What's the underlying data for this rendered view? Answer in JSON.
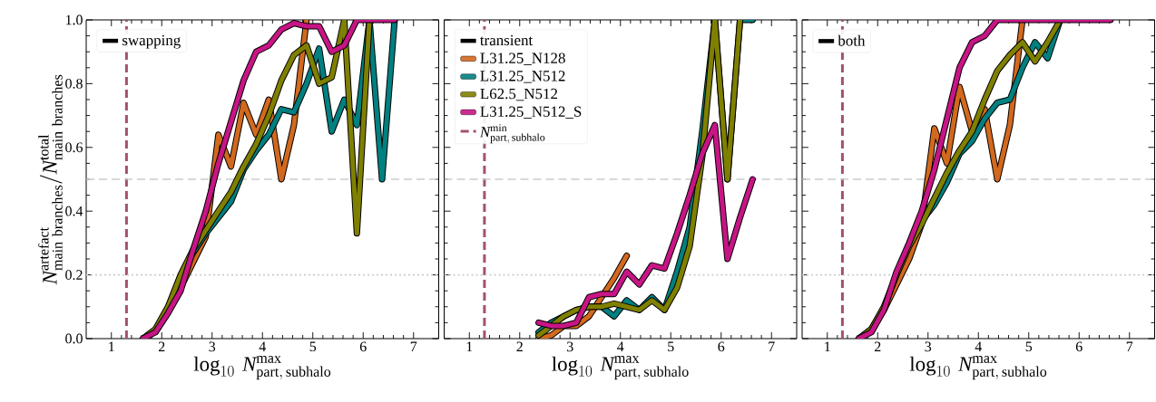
{
  "chart_data": [
    {
      "type": "line",
      "xlabel": "\\log_{10}\\,\\mathit{N}^{\\mathrm{max}}_{\\mathrm{part,\\,subhalo}}",
      "ylabel": "\\mathit{N}^{\\mathrm{artefact}}_{\\mathrm{main\\ branches}}\\mathrm{/}\\mathit{N}^{\\mathrm{total}}_{\\mathrm{main\\ branches}}",
      "legend_title": "swapping",
      "legend": "top left",
      "xlim": [
        0.5,
        7.5
      ],
      "ylim": [
        0,
        1
      ],
      "xticks": [
        1,
        2,
        3,
        4,
        5,
        6,
        7
      ],
      "yticks": [
        {
          "value": 0,
          "label": "0.0"
        },
        {
          "value": 0.2,
          "label": "0.2"
        },
        {
          "value": 0.4,
          "label": "0.4"
        },
        {
          "value": 0.6,
          "label": "0.6"
        },
        {
          "value": 0.8,
          "label": "0.8"
        },
        {
          "value": 1,
          "label": "1.0"
        }
      ],
      "ref_lines": [
        {
          "axis": "x",
          "value": 1.3,
          "color": "#a3526a",
          "line_style": "dashed"
        },
        {
          "axis": "y",
          "value": 0.5,
          "color": "#cccccc",
          "line_style": "dashed"
        },
        {
          "axis": "y",
          "value": 0.2,
          "color": "#cccccc",
          "line_style": "dotted"
        }
      ],
      "series": [
        {
          "color": "#d2691e",
          "x": [
            2.125,
            2.375,
            2.625,
            2.875,
            3.125,
            3.375,
            3.625,
            3.875,
            4.125,
            4.375,
            4.625,
            4.875
          ],
          "values": [
            0.09,
            0.16,
            0.24,
            0.32,
            0.64,
            0.54,
            0.74,
            0.64,
            0.75,
            0.5,
            0.67,
            1.0
          ]
        },
        {
          "color": "#008080",
          "x": [
            2.375,
            2.625,
            2.875,
            3.125,
            3.375,
            3.625,
            3.875,
            4.125,
            4.375,
            4.625,
            4.875,
            5.125,
            5.375,
            5.625,
            5.875,
            6.125,
            6.375,
            6.625
          ],
          "values": [
            0.19,
            0.27,
            0.33,
            0.38,
            0.43,
            0.53,
            0.59,
            0.64,
            0.72,
            0.71,
            0.8,
            0.91,
            0.65,
            0.75,
            0.67,
            1.0,
            0.5,
            1.0
          ]
        },
        {
          "color": "#808000",
          "x": [
            1.625,
            1.875,
            2.125,
            2.375,
            2.625,
            2.875,
            3.125,
            3.375,
            3.625,
            3.875,
            4.125,
            4.375,
            4.625,
            4.875,
            5.125,
            5.375,
            5.625,
            5.875,
            6.125
          ],
          "values": [
            0,
            0.03,
            0.1,
            0.2,
            0.28,
            0.34,
            0.4,
            0.46,
            0.54,
            0.61,
            0.7,
            0.81,
            0.89,
            0.92,
            0.8,
            0.82,
            1.0,
            0.33,
            1.0
          ]
        },
        {
          "color": "#c71585",
          "x": [
            1.625,
            1.875,
            2.125,
            2.375,
            2.625,
            2.875,
            3.125,
            3.375,
            3.625,
            3.875,
            4.125,
            4.375,
            4.625,
            4.875,
            5.125,
            5.375,
            5.625,
            5.875,
            6.125,
            6.375,
            6.625
          ],
          "values": [
            0,
            0.02,
            0.08,
            0.15,
            0.28,
            0.4,
            0.55,
            0.68,
            0.81,
            0.9,
            0.92,
            0.97,
            0.99,
            0.98,
            0.98,
            0.9,
            0.92,
            1.0,
            1.0,
            1.0,
            1.0
          ]
        }
      ]
    },
    {
      "type": "line",
      "xlabel": "\\log_{10}\\,\\mathit{N}^{\\mathrm{max}}_{\\mathrm{part,\\,subhalo}}",
      "legend_title": "transient",
      "legend": "top left",
      "tick_labels": "x",
      "xlim": [
        0.5,
        7.5
      ],
      "ylim": [
        0,
        1
      ],
      "xticks": [
        1,
        2,
        3,
        4,
        5,
        6,
        7
      ],
      "yticks": [
        {
          "value": 0,
          "label": null
        },
        {
          "value": 0.2,
          "label": null
        },
        {
          "value": 0.4,
          "label": null
        },
        {
          "value": 0.6,
          "label": null
        },
        {
          "value": 0.8,
          "label": null
        },
        {
          "value": 1,
          "label": null
        }
      ],
      "ref_lines": [
        {
          "axis": "x",
          "value": 1.3,
          "color": "#a3526a",
          "line_style": "dashed",
          "label": "\\mathit{N}^{\\mathrm{min}}_{\\mathrm{part,\\,subhalo}}"
        },
        {
          "axis": "y",
          "value": 0.5,
          "color": "#cccccc",
          "line_style": "dashed"
        },
        {
          "axis": "y",
          "value": 0.2,
          "color": "#cccccc",
          "line_style": "dotted"
        }
      ],
      "series": [
        {
          "name": "L31.25_N128",
          "color": "#d2691e",
          "x": [
            2.375,
            2.625,
            2.875,
            3.125,
            3.375,
            3.625,
            3.875,
            4.125
          ],
          "values": [
            0,
            0.01,
            0.04,
            0.04,
            0.07,
            0.13,
            0.19,
            0.26
          ]
        },
        {
          "name": "L31.25_N512",
          "color": "#008080",
          "x": [
            2.375,
            2.625,
            2.875,
            3.125,
            3.375,
            3.625,
            3.875,
            4.125,
            4.375,
            4.625,
            4.875,
            5.125,
            5.375,
            5.625,
            5.875,
            6.125,
            6.375,
            6.625
          ],
          "values": [
            0.02,
            0.05,
            0.07,
            0.09,
            0.1,
            0.1,
            0.07,
            0.12,
            0.09,
            0.13,
            0.09,
            0.21,
            0.35,
            0.65,
            1.0,
            0.5,
            1.0,
            1.0
          ]
        },
        {
          "name": "L62.5_N512",
          "color": "#808000",
          "x": [
            2.375,
            2.625,
            2.875,
            3.125,
            3.375,
            3.625,
            3.875,
            4.125,
            4.375,
            4.625,
            4.875,
            5.125,
            5.375,
            5.625,
            5.875,
            6.125,
            6.375
          ],
          "values": [
            0.01,
            0.04,
            0.07,
            0.09,
            0.1,
            0.1,
            0.11,
            0.1,
            0.09,
            0.12,
            0.09,
            0.16,
            0.29,
            0.57,
            1.0,
            0.5,
            1.0
          ]
        },
        {
          "name": "L31.25_N512_S",
          "color": "#c71585",
          "x": [
            2.375,
            2.625,
            2.875,
            3.125,
            3.375,
            3.625,
            3.875,
            4.125,
            4.375,
            4.625,
            4.875,
            5.125,
            5.375,
            5.625,
            5.875,
            6.125,
            6.375,
            6.625
          ],
          "values": [
            0.05,
            0.04,
            0.04,
            0.05,
            0.13,
            0.14,
            0.14,
            0.21,
            0.17,
            0.23,
            0.22,
            0.33,
            0.45,
            0.58,
            0.67,
            0.25,
            0.38,
            0.5
          ]
        }
      ]
    },
    {
      "type": "line",
      "xlabel": "\\log_{10}\\,\\mathit{N}^{\\mathrm{max}}_{\\mathrm{part,\\,subhalo}}",
      "legend_title": "both",
      "legend": "top left",
      "tick_labels": "x",
      "xlim": [
        0.5,
        7.5
      ],
      "ylim": [
        0,
        1
      ],
      "xticks": [
        1,
        2,
        3,
        4,
        5,
        6,
        7
      ],
      "yticks": [
        {
          "value": 0,
          "label": null
        },
        {
          "value": 0.2,
          "label": null
        },
        {
          "value": 0.4,
          "label": null
        },
        {
          "value": 0.6,
          "label": null
        },
        {
          "value": 0.8,
          "label": null
        },
        {
          "value": 1,
          "label": null
        }
      ],
      "ref_lines": [
        {
          "axis": "x",
          "value": 1.3,
          "color": "#a3526a",
          "line_style": "dashed"
        },
        {
          "axis": "y",
          "value": 0.5,
          "color": "#cccccc",
          "line_style": "dashed"
        },
        {
          "axis": "y",
          "value": 0.2,
          "color": "#cccccc",
          "line_style": "dotted"
        }
      ],
      "series": [
        {
          "color": "#d2691e",
          "x": [
            1.625,
            1.875,
            2.125,
            2.375,
            2.625,
            2.875,
            3.125,
            3.375,
            3.625,
            3.875,
            4.125,
            4.375,
            4.625,
            4.875
          ],
          "values": [
            0,
            0.03,
            0.09,
            0.17,
            0.25,
            0.36,
            0.66,
            0.55,
            0.79,
            0.65,
            0.72,
            0.5,
            0.67,
            1.0
          ]
        },
        {
          "color": "#008080",
          "x": [
            2.875,
            3.125,
            3.375,
            3.625,
            3.875,
            4.125,
            4.375,
            4.625,
            4.875,
            5.125,
            5.375,
            5.625
          ],
          "values": [
            0.37,
            0.42,
            0.49,
            0.58,
            0.62,
            0.69,
            0.74,
            0.75,
            0.85,
            0.93,
            0.88,
            1.0
          ]
        },
        {
          "color": "#808000",
          "x": [
            1.625,
            1.875,
            2.125,
            2.375,
            2.625,
            2.875,
            3.125,
            3.375,
            3.625,
            3.875,
            4.125,
            4.375,
            4.625,
            4.875,
            5.125,
            5.375,
            5.625
          ],
          "values": [
            0,
            0.03,
            0.1,
            0.2,
            0.29,
            0.36,
            0.44,
            0.52,
            0.59,
            0.65,
            0.75,
            0.84,
            0.89,
            0.93,
            0.87,
            0.93,
            1.0
          ]
        },
        {
          "color": "#c71585",
          "x": [
            1.625,
            1.875,
            2.125,
            2.375,
            2.625,
            2.875,
            3.125,
            3.375,
            3.625,
            3.875,
            4.125,
            4.375,
            4.625,
            4.875,
            5.125,
            5.375,
            5.625,
            5.875,
            6.125,
            6.375,
            6.625
          ],
          "values": [
            0,
            0.02,
            0.09,
            0.21,
            0.3,
            0.4,
            0.53,
            0.69,
            0.85,
            0.93,
            0.95,
            1.0,
            1.0,
            1.0,
            1.0,
            1.0,
            1.0,
            1.0,
            1.0,
            1.0,
            1.0
          ]
        }
      ]
    }
  ]
}
